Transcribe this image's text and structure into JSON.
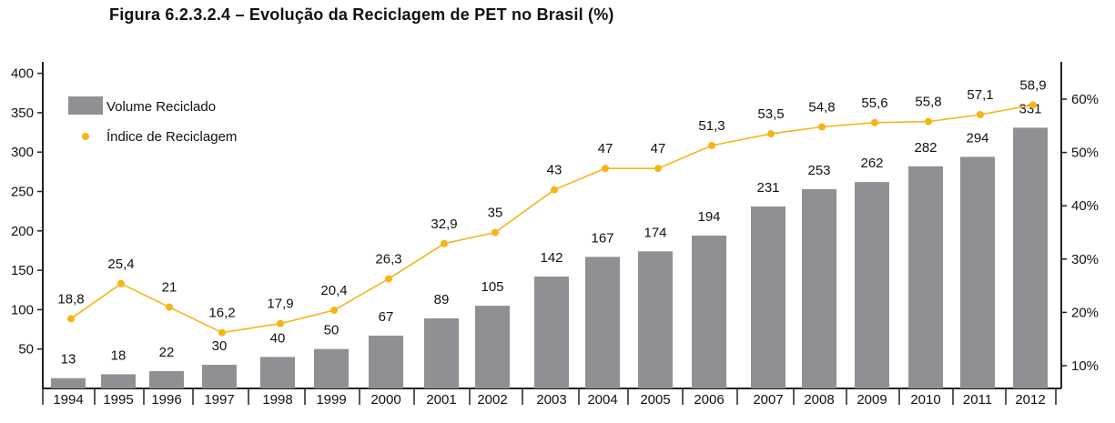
{
  "title": "Figura 6.2.3.2.4 – Evolução da Reciclagem de PET no Brasil (%)",
  "colors": {
    "bar": "#8e9093",
    "line": "#f6b41a",
    "axis": "#222222"
  },
  "chart_data": {
    "type": "bar",
    "categories": [
      "1994",
      "1995",
      "1996",
      "1997",
      "1998",
      "1999",
      "2000",
      "2001",
      "2002",
      "2003",
      "2004",
      "2005",
      "2006",
      "2007",
      "2008",
      "2009",
      "2010",
      "2011",
      "2012"
    ],
    "series": [
      {
        "name": "Volume Reciclado",
        "type": "bar",
        "axis": "left",
        "values": [
          13,
          18,
          22,
          30,
          40,
          50,
          67,
          89,
          105,
          142,
          167,
          174,
          194,
          231,
          253,
          262,
          282,
          294,
          331
        ],
        "labels": [
          "13",
          "18",
          "22",
          "30",
          "40",
          "50",
          "67",
          "89",
          "105",
          "142",
          "167",
          "174",
          "194",
          "231",
          "253",
          "262",
          "282",
          "294",
          "331"
        ]
      },
      {
        "name": "Índice de Reciclagem",
        "type": "line",
        "axis": "right",
        "values": [
          18.8,
          25.4,
          21,
          16.2,
          17.9,
          20.4,
          26.3,
          32.9,
          35,
          43,
          47,
          47,
          51.3,
          53.5,
          54.8,
          55.6,
          55.8,
          57.1,
          58.9
        ],
        "labels": [
          "18,8",
          "25,4",
          "21",
          "16,2",
          "17,9",
          "20,4",
          "26,3",
          "32,9",
          "35",
          "43",
          "47",
          "47",
          "51,3",
          "53,5",
          "54,8",
          "55,6",
          "55,8",
          "57,1",
          "58,9"
        ]
      }
    ],
    "y_left": {
      "ticks": [
        "50",
        "100",
        "150",
        "200",
        "250",
        "300",
        "350",
        "400"
      ],
      "tick_values": [
        50,
        100,
        150,
        200,
        250,
        300,
        350,
        400
      ]
    },
    "y_right": {
      "ticks": [
        "10%",
        "20%",
        "30%",
        "40%",
        "50%",
        "60%"
      ],
      "tick_values": [
        10,
        20,
        30,
        40,
        50,
        60
      ]
    },
    "legend": "top-left",
    "grid": false
  }
}
